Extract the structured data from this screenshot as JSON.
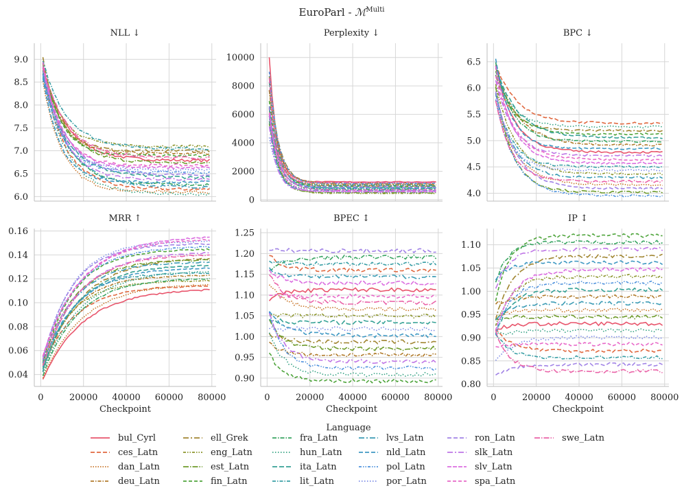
{
  "figure": {
    "suptitle_main": "EuroParl - ",
    "suptitle_math": "ℳ",
    "suptitle_sup": "Multi",
    "legend_title": "Language",
    "xlabel": "Checkpoint"
  },
  "chart_data": [
    {
      "type": "line",
      "title": "NLL ↓",
      "ylim": [
        5.9,
        9.35
      ],
      "yticks": [
        6.0,
        6.5,
        7.0,
        7.5,
        8.0,
        8.5,
        9.0
      ],
      "ytick_labels": [
        "6.0",
        "6.5",
        "7.0",
        "7.5",
        "8.0",
        "8.5",
        "9.0"
      ],
      "xlim": [
        -3000,
        82000
      ],
      "xticks": [
        0,
        20000,
        40000,
        60000,
        80000
      ],
      "xtick_labels": [],
      "xlabel": "",
      "start": [
        8.5,
        9.1
      ],
      "end": [
        6.05,
        7.1
      ],
      "noise": 0.03,
      "rate": 10000
    },
    {
      "type": "line",
      "title": "Perplexity ↓",
      "ylim": [
        -100,
        11000
      ],
      "yticks": [
        0,
        2000,
        4000,
        6000,
        8000,
        10000
      ],
      "ytick_labels": [
        "0",
        "2000",
        "4000",
        "6000",
        "8000",
        "10000"
      ],
      "xlim": [
        -3000,
        82000
      ],
      "xticks": [
        0,
        20000,
        40000,
        60000,
        80000
      ],
      "xtick_labels": [],
      "xlabel": "",
      "start": [
        4000,
        10500
      ],
      "end": [
        450,
        1250
      ],
      "noise": 30,
      "rate": 4000
    },
    {
      "type": "line",
      "title": "BPC ↓",
      "ylim": [
        3.85,
        6.85
      ],
      "yticks": [
        4.0,
        4.5,
        5.0,
        5.5,
        6.0,
        6.5
      ],
      "ytick_labels": [
        "4.0",
        "4.5",
        "5.0",
        "5.5",
        "6.0",
        "6.5"
      ],
      "xlim": [
        -3000,
        82000
      ],
      "xticks": [
        0,
        20000,
        40000,
        60000,
        80000
      ],
      "xtick_labels": [],
      "xlabel": "",
      "start": [
        5.6,
        6.8
      ],
      "end": [
        3.95,
        5.33
      ],
      "noise": 0.02,
      "rate": 9000
    },
    {
      "type": "line",
      "title": "MRR ↑",
      "ylim": [
        0.03,
        0.162
      ],
      "yticks": [
        0.04,
        0.06,
        0.08,
        0.1,
        0.12,
        0.14,
        0.16
      ],
      "ytick_labels": [
        "0.04",
        "0.06",
        "0.08",
        "0.10",
        "0.12",
        "0.14",
        "0.16"
      ],
      "xlim": [
        -3000,
        82000
      ],
      "xticks": [
        0,
        20000,
        40000,
        60000,
        80000
      ],
      "xtick_labels": [
        "0",
        "20000",
        "40000",
        "60000",
        "80000"
      ],
      "xlabel": "Checkpoint",
      "start": [
        0.035,
        0.06
      ],
      "end": [
        0.112,
        0.156
      ],
      "noise": 0.0006,
      "rate": 16000
    },
    {
      "type": "line",
      "title": "BPEC ↕",
      "ylim": [
        0.88,
        1.26
      ],
      "yticks": [
        0.9,
        0.95,
        1.0,
        1.05,
        1.1,
        1.15,
        1.2,
        1.25
      ],
      "ytick_labels": [
        "0.90",
        "0.95",
        "1.00",
        "1.05",
        "1.10",
        "1.15",
        "1.20",
        "1.25"
      ],
      "xlim": [
        -3000,
        82000
      ],
      "xticks": [
        0,
        20000,
        40000,
        60000,
        80000
      ],
      "xtick_labels": [
        "0",
        "20000",
        "40000",
        "60000",
        "80000"
      ],
      "xlabel": "Checkpoint",
      "start": [
        0.95,
        1.25
      ],
      "end": [
        0.893,
        1.207
      ],
      "noise": 0.005,
      "rate": 7000
    },
    {
      "type": "line",
      "title": "IP ↕",
      "ylim": [
        0.795,
        1.135
      ],
      "yticks": [
        0.8,
        0.85,
        0.9,
        0.95,
        1.0,
        1.05,
        1.1
      ],
      "ytick_labels": [
        "0.80",
        "0.85",
        "0.90",
        "0.95",
        "1.00",
        "1.05",
        "1.10"
      ],
      "xlim": [
        -3000,
        82000
      ],
      "xticks": [
        0,
        20000,
        40000,
        60000,
        80000
      ],
      "xtick_labels": [
        "0",
        "20000",
        "40000",
        "60000",
        "80000"
      ],
      "xlabel": "Checkpoint",
      "start": [
        0.8,
        1.06
      ],
      "end": [
        0.828,
        1.12
      ],
      "noise": 0.004,
      "rate": 7000
    }
  ],
  "series": [
    {
      "name": "bul_Cyrl",
      "color": "#e8546b",
      "dash": ""
    },
    {
      "name": "ces_Latn",
      "color": "#e0683f",
      "dash": "6,3"
    },
    {
      "name": "dan_Latn",
      "color": "#c8762a",
      "dash": "1.5,2"
    },
    {
      "name": "deu_Latn",
      "color": "#b07a2a",
      "dash": "5,2,1.5,2"
    },
    {
      "name": "ell_Grek",
      "color": "#a08530",
      "dash": "8,3,2,3"
    },
    {
      "name": "eng_Latn",
      "color": "#8c952c",
      "dash": "4,2,1.5,2,1.5,2"
    },
    {
      "name": "est_Latn",
      "color": "#6e9b2b",
      "dash": "8,2,1.5,2"
    },
    {
      "name": "fin_Latn",
      "color": "#4ea43b",
      "dash": "5,3"
    },
    {
      "name": "fra_Latn",
      "color": "#38a461",
      "dash": "6,2,1.5,2"
    },
    {
      "name": "hun_Latn",
      "color": "#35a283",
      "dash": "1.5,2.5"
    },
    {
      "name": "ita_Latn",
      "color": "#35a195",
      "dash": "7,3"
    },
    {
      "name": "lit_Latn",
      "color": "#389ea5",
      "dash": "5,2,1.5,2"
    },
    {
      "name": "lvs_Latn",
      "color": "#3b9bb4",
      "dash": "8,3,2,3"
    },
    {
      "name": "nld_Latn",
      "color": "#3e98c2",
      "dash": "6,3"
    },
    {
      "name": "pol_Latn",
      "color": "#4f92dd",
      "dash": "4,2,1.5,2,1.5,2"
    },
    {
      "name": "por_Latn",
      "color": "#7b8ae6",
      "dash": "1.5,2.5"
    },
    {
      "name": "ron_Latn",
      "color": "#a183e6",
      "dash": "6,3"
    },
    {
      "name": "slk_Latn",
      "color": "#bf76e6",
      "dash": "8,3,2,3"
    },
    {
      "name": "slv_Latn",
      "color": "#db6ee0",
      "dash": "6,2"
    },
    {
      "name": "spa_Latn",
      "color": "#e868c8",
      "dash": "5,3"
    },
    {
      "name": "swe_Latn",
      "color": "#ea63a8",
      "dash": "8,2,1.5,2"
    }
  ]
}
